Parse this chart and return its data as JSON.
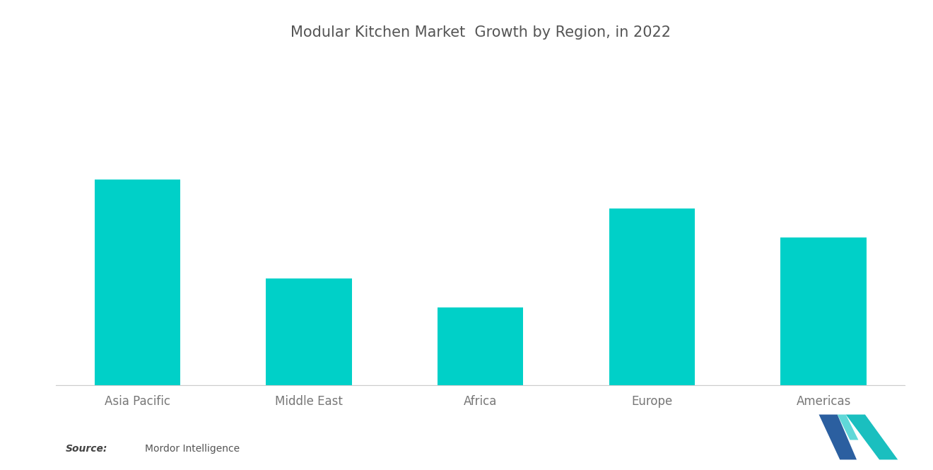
{
  "title": "Modular Kitchen Market  Growth by Region, in 2022",
  "categories": [
    "Asia Pacific",
    "Middle East",
    "Africa",
    "Europe",
    "Americas"
  ],
  "values": [
    100,
    52,
    38,
    86,
    72
  ],
  "bar_color": "#00D0C8",
  "background_color": "#FFFFFF",
  "title_fontsize": 15,
  "tick_fontsize": 12,
  "ylim": [
    0,
    160
  ],
  "bar_width": 0.5
}
